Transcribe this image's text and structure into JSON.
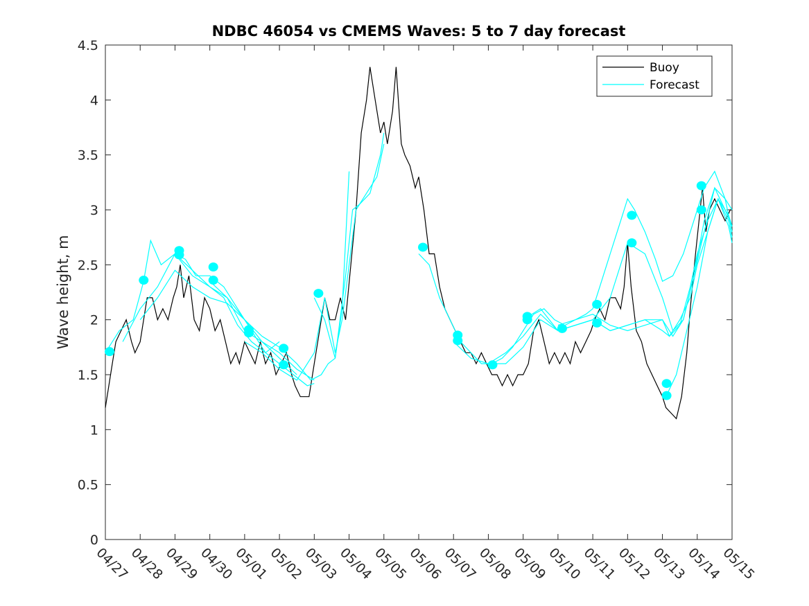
{
  "chart_data": {
    "type": "line",
    "title": "NDBC 46054 vs CMEMS Waves: 5 to 7 day forecast",
    "xlabel": "",
    "ylabel": "Wave height, m",
    "x_tick_labels": [
      "04/27",
      "04/28",
      "04/29",
      "04/30",
      "05/01",
      "05/02",
      "05/03",
      "05/04",
      "05/05",
      "05/06",
      "05/07",
      "05/08",
      "05/09",
      "05/10",
      "05/11",
      "05/12",
      "05/13",
      "05/14",
      "05/15"
    ],
    "y_tick_labels": [
      "0",
      "0.5",
      "1",
      "1.5",
      "2",
      "2.5",
      "3",
      "3.5",
      "4",
      "4.5"
    ],
    "ylim": [
      0,
      4.5
    ],
    "xlim_days": [
      0,
      18
    ],
    "grid": false,
    "legend_position": "top-right",
    "legend": [
      "Buoy",
      "Forecast"
    ],
    "colors": {
      "buoy": "#000000",
      "forecast": "#00FFFF"
    },
    "series": [
      {
        "name": "Buoy",
        "color": "#000000",
        "x": [
          0,
          0.1,
          0.2,
          0.3,
          0.45,
          0.6,
          0.75,
          0.85,
          1.0,
          1.1,
          1.2,
          1.35,
          1.5,
          1.65,
          1.8,
          1.95,
          2.05,
          2.15,
          2.25,
          2.4,
          2.55,
          2.7,
          2.85,
          3.0,
          3.15,
          3.3,
          3.45,
          3.6,
          3.75,
          3.85,
          4.0,
          4.15,
          4.3,
          4.45,
          4.6,
          4.75,
          4.9,
          5.05,
          5.2,
          5.35,
          5.45,
          5.6,
          5.7,
          5.85,
          6.0,
          6.15,
          6.3,
          6.45,
          6.6,
          6.75,
          6.9,
          7.05,
          7.2,
          7.35,
          7.5,
          7.6,
          7.75,
          7.9,
          8.0,
          8.1,
          8.25,
          8.35,
          8.5,
          8.6,
          8.75,
          8.9,
          9.0,
          9.15,
          9.3,
          9.45,
          9.6,
          9.75,
          9.9,
          10.05,
          10.2,
          10.35,
          10.5,
          10.65,
          10.8,
          10.95,
          11.1,
          11.25,
          11.4,
          11.55,
          11.7,
          11.85,
          12.0,
          12.15,
          12.3,
          12.45,
          12.6,
          12.75,
          12.9,
          13.05,
          13.2,
          13.35,
          13.5,
          13.65,
          13.8,
          13.95,
          14.05,
          14.2,
          14.35,
          14.5,
          14.65,
          14.8,
          14.9,
          15.0,
          15.1,
          15.25,
          15.4,
          15.55,
          15.7,
          15.85,
          16.0,
          16.1,
          16.25,
          16.4,
          16.55,
          16.7,
          16.8,
          16.95,
          17.05,
          17.15,
          17.25,
          17.35,
          17.5,
          17.65,
          17.8,
          17.95,
          18.0
        ],
        "y": [
          1.2,
          1.4,
          1.6,
          1.8,
          1.9,
          2.0,
          1.8,
          1.7,
          1.8,
          2.0,
          2.2,
          2.2,
          2.0,
          2.1,
          2.0,
          2.2,
          2.3,
          2.5,
          2.2,
          2.4,
          2.0,
          1.9,
          2.2,
          2.1,
          1.9,
          2.0,
          1.8,
          1.6,
          1.7,
          1.6,
          1.8,
          1.7,
          1.6,
          1.8,
          1.6,
          1.7,
          1.5,
          1.6,
          1.7,
          1.5,
          1.4,
          1.3,
          1.3,
          1.3,
          1.6,
          1.9,
          2.2,
          2.0,
          2.0,
          2.2,
          2.0,
          2.5,
          3.0,
          3.7,
          4.0,
          4.3,
          4.0,
          3.7,
          3.8,
          3.6,
          3.9,
          4.3,
          3.6,
          3.5,
          3.4,
          3.2,
          3.3,
          3.0,
          2.6,
          2.6,
          2.3,
          2.1,
          2.0,
          1.9,
          1.8,
          1.7,
          1.7,
          1.6,
          1.7,
          1.6,
          1.5,
          1.5,
          1.4,
          1.5,
          1.4,
          1.5,
          1.5,
          1.6,
          1.9,
          2.0,
          1.8,
          1.6,
          1.7,
          1.6,
          1.7,
          1.6,
          1.8,
          1.7,
          1.8,
          1.9,
          2.0,
          2.1,
          2.0,
          2.2,
          2.2,
          2.1,
          2.3,
          2.7,
          2.3,
          1.9,
          1.8,
          1.6,
          1.5,
          1.4,
          1.3,
          1.2,
          1.15,
          1.1,
          1.3,
          1.7,
          2.1,
          2.6,
          2.9,
          3.2,
          2.8,
          3.0,
          3.1,
          3.0,
          2.9,
          3.0,
          3.0
        ]
      },
      {
        "name": "Forecast",
        "color": "#00FFFF",
        "segments": [
          {
            "x": [
              0,
              0.4,
              0.8,
              1.1,
              1.3,
              1.6,
              2.0,
              2.3,
              2.6,
              3.0,
              3.4,
              3.8,
              4.2,
              4.6,
              5.0
            ],
            "y": [
              1.7,
              1.9,
              2.0,
              2.35,
              2.72,
              2.5,
              2.6,
              2.55,
              2.4,
              2.4,
              2.3,
              2.1,
              1.9,
              1.7,
              1.8
            ]
          },
          {
            "x": [
              0.5,
              1.0,
              1.5,
              2.0,
              2.5,
              3.0,
              3.5,
              4.0,
              4.5,
              5.0,
              5.5
            ],
            "y": [
              1.8,
              2.1,
              2.3,
              2.6,
              2.45,
              2.3,
              2.2,
              1.9,
              1.8,
              1.65,
              1.5
            ]
          },
          {
            "x": [
              1.0,
              1.5,
              2.0,
              2.5,
              3.0,
              3.5,
              4.0,
              4.5,
              5.0,
              5.5,
              6.0
            ],
            "y": [
              2.0,
              2.2,
              2.45,
              2.3,
              2.2,
              2.15,
              2.0,
              1.8,
              1.7,
              1.55,
              1.45
            ]
          },
          {
            "x": [
              2.0,
              2.5,
              3.0,
              3.4,
              3.8,
              4.2,
              4.6,
              5.0,
              5.4,
              5.8,
              6.0
            ],
            "y": [
              2.6,
              2.4,
              2.3,
              2.2,
              1.95,
              1.8,
              1.7,
              1.6,
              1.5,
              1.4,
              1.42
            ]
          },
          {
            "x": [
              3.0,
              3.5,
              4.0,
              4.5,
              5.0,
              5.5,
              5.9,
              6.2,
              6.4,
              6.6,
              6.9,
              7.1,
              7.3,
              7.6,
              7.9,
              8.0
            ],
            "y": [
              2.35,
              2.2,
              2.0,
              1.85,
              1.75,
              1.6,
              1.45,
              1.5,
              1.6,
              1.65,
              2.4,
              3.0,
              3.05,
              3.15,
              3.5,
              3.7
            ]
          },
          {
            "x": [
              4.0,
              4.5,
              5.0,
              5.5,
              6.0,
              6.3,
              6.6,
              6.8,
              7.0,
              7.2,
              7.4,
              7.8,
              8.0
            ],
            "y": [
              1.8,
              1.7,
              1.55,
              1.45,
              1.7,
              2.2,
              1.7,
              2.0,
              2.5,
              3.0,
              3.1,
              3.3,
              3.6
            ]
          },
          {
            "x": [
              6.0,
              6.3,
              6.6,
              6.8,
              7.0
            ],
            "y": [
              2.2,
              2.0,
              1.65,
              2.1,
              3.35
            ]
          },
          {
            "x": [
              9.0,
              9.3,
              9.6,
              9.9,
              10.2,
              10.5,
              10.8,
              11.1,
              11.4,
              11.7,
              12.0,
              12.3,
              12.6,
              12.9,
              13.2,
              13.5,
              13.8,
              14.0,
              14.2,
              14.5,
              14.8,
              15.0,
              15.2,
              15.5,
              15.8,
              16.0,
              16.3,
              16.6,
              16.9,
              17.2,
              17.5,
              17.8,
              18.0
            ],
            "y": [
              2.6,
              2.5,
              2.2,
              2.0,
              1.8,
              1.7,
              1.6,
              1.6,
              1.65,
              1.75,
              1.9,
              2.05,
              2.1,
              2.0,
              1.95,
              2.0,
              2.05,
              2.1,
              2.3,
              2.6,
              2.9,
              3.1,
              3.0,
              2.8,
              2.55,
              2.35,
              2.4,
              2.6,
              2.9,
              3.2,
              3.35,
              3.1,
              3.0
            ]
          },
          {
            "x": [
              10.0,
              10.5,
              11.0,
              11.5,
              12.0,
              12.5,
              13.0,
              13.5,
              14.0,
              14.5,
              15.0,
              15.5,
              16.0,
              16.3,
              16.6,
              16.9,
              17.2,
              17.5,
              17.8,
              18.0
            ],
            "y": [
              1.8,
              1.65,
              1.6,
              1.7,
              1.85,
              2.05,
              1.9,
              1.95,
              2.0,
              2.2,
              2.7,
              2.6,
              2.2,
              1.9,
              2.0,
              2.4,
              2.9,
              3.2,
              3.0,
              2.85
            ]
          },
          {
            "x": [
              11.0,
              11.5,
              12.0,
              12.5,
              13.0,
              13.5,
              14.0,
              14.5,
              15.0,
              15.5,
              16.0,
              16.3,
              16.6,
              16.9,
              17.2,
              17.5,
              17.8,
              18.0
            ],
            "y": [
              1.6,
              1.6,
              1.75,
              2.0,
              1.9,
              1.95,
              2.0,
              1.9,
              1.95,
              2.0,
              2.0,
              1.85,
              2.0,
              2.4,
              2.8,
              3.2,
              3.1,
              2.8
            ]
          },
          {
            "x": [
              12.0,
              12.5,
              13.0,
              13.5,
              14.0,
              14.5,
              15.0,
              15.5,
              16.0,
              16.2,
              16.5,
              16.8,
              17.0,
              17.3,
              17.6,
              17.9,
              18.0
            ],
            "y": [
              2.0,
              2.1,
              1.9,
              1.95,
              2.0,
              1.9,
              1.95,
              2.0,
              1.9,
              1.85,
              2.0,
              2.2,
              2.5,
              2.8,
              3.1,
              2.9,
              2.75
            ]
          },
          {
            "x": [
              13.0,
              13.5,
              14.0,
              14.5,
              15.0,
              15.5,
              16.0,
              16.2,
              16.5,
              16.8,
              17.0,
              17.3,
              17.6,
              17.9,
              18.0
            ],
            "y": [
              1.95,
              2.0,
              2.05,
              1.95,
              1.9,
              1.95,
              2.0,
              1.85,
              1.95,
              2.3,
              2.6,
              2.9,
              3.1,
              2.85,
              2.7
            ]
          },
          {
            "x": [
              16.1,
              16.4,
              16.7,
              17.0,
              17.3,
              17.6,
              17.9,
              18.0
            ],
            "y": [
              1.3,
              1.5,
              1.9,
              2.3,
              2.8,
              3.1,
              2.95,
              2.85
            ]
          }
        ]
      }
    ],
    "forecast_markers": {
      "x": [
        0.12,
        1.1,
        2.12,
        2.12,
        3.1,
        3.1,
        4.12,
        4.12,
        5.12,
        5.12,
        6.12,
        9.12,
        10.12,
        10.12,
        11.12,
        12.12,
        12.12,
        13.12,
        14.12,
        14.12,
        15.12,
        15.12,
        16.12,
        16.12,
        17.12,
        17.12
      ],
      "y": [
        1.71,
        2.36,
        2.63,
        2.59,
        2.48,
        2.36,
        1.91,
        1.88,
        1.74,
        1.59,
        2.24,
        2.66,
        1.86,
        1.81,
        1.59,
        2.03,
        2.0,
        1.92,
        2.14,
        1.97,
        2.95,
        2.7,
        1.42,
        1.31,
        3.22,
        3.0
      ]
    }
  }
}
